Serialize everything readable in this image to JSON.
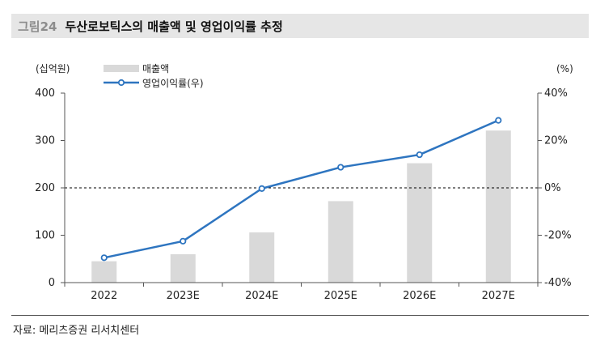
{
  "figure": {
    "number": "그림24",
    "title": "두산로보틱스의 매출액 및 영업이익률 추정"
  },
  "source": "자료: 메리츠증권 리서치센터",
  "colors": {
    "bar": "#d9d9d9",
    "line": "#2e75c0",
    "marker_fill": "#ffffff",
    "axis": "#555555"
  },
  "chart_data": {
    "type": "bar",
    "categories": [
      "2022",
      "2023E",
      "2024E",
      "2025E",
      "2026E",
      "2027E"
    ],
    "series": [
      {
        "name": "매출액",
        "type": "bar",
        "axis": "left",
        "values": [
          45,
          60,
          106,
          172,
          252,
          321
        ]
      },
      {
        "name": "영업이익률(우)",
        "type": "line",
        "axis": "right",
        "values": [
          -29.5,
          -22.5,
          -0.3,
          8.7,
          14,
          28.5
        ]
      }
    ],
    "ylabel_left": "(십억원)",
    "ylabel_right": "(%)",
    "ylim_left": [
      0,
      400
    ],
    "ylim_right": [
      -40,
      40
    ],
    "yticks_left": [
      "0",
      "100",
      "200",
      "300",
      "400"
    ],
    "yticks_right": [
      "-40%",
      "-20%",
      "0%",
      "20%",
      "40%"
    ],
    "reference_line": "0%",
    "legend": "top-left",
    "grid": false
  }
}
